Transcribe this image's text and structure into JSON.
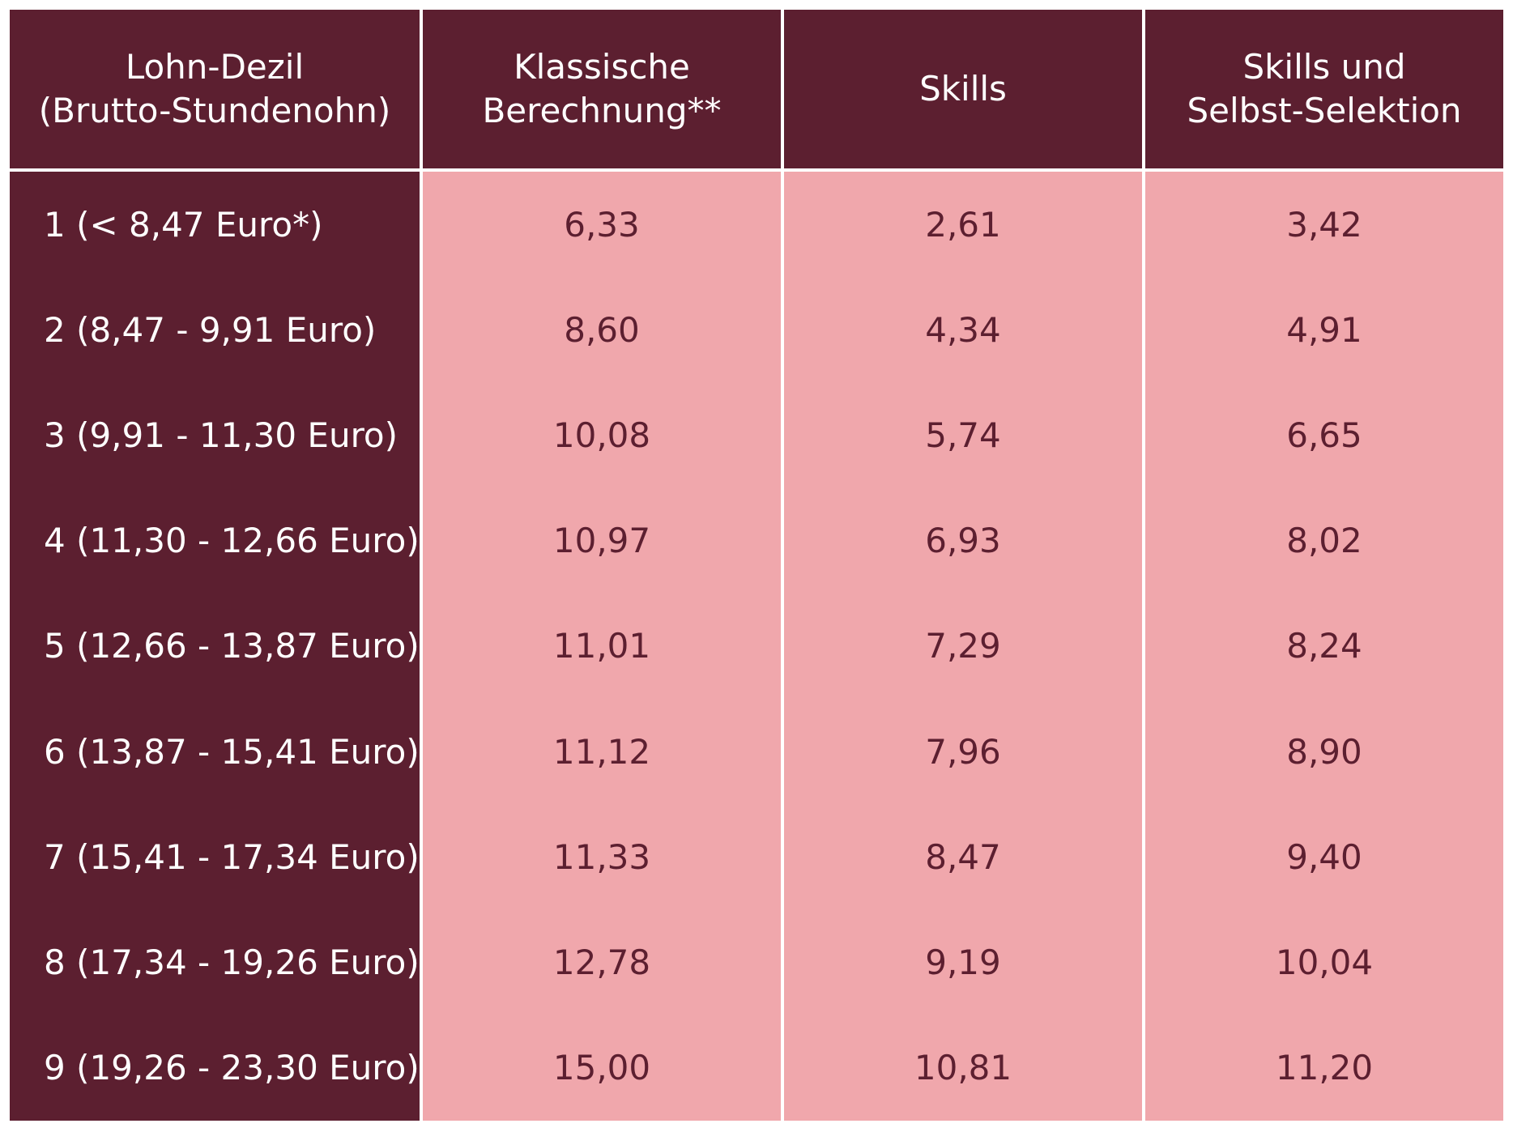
{
  "headers": [
    "Lohn-Dezil\n(Brutto-Stundenohn)",
    "Klassische\nBerechnung**",
    "Skills",
    "Skills und\nSelbst-Selektion"
  ],
  "rows": [
    {
      "label": "1 (< 8,47 Euro*)",
      "values": [
        "6,33",
        "2,61",
        "3,42"
      ]
    },
    {
      "label": "2 (8,47 - 9,91 Euro)",
      "values": [
        "8,60",
        "4,34",
        "4,91"
      ]
    },
    {
      "label": "3 (9,91 - 11,30 Euro)",
      "values": [
        "10,08",
        "5,74",
        "6,65"
      ]
    },
    {
      "label": "4 (11,30 - 12,66 Euro)",
      "values": [
        "10,97",
        "6,93",
        "8,02"
      ]
    },
    {
      "label": "5 (12,66 - 13,87 Euro)",
      "values": [
        "11,01",
        "7,29",
        "8,24"
      ]
    },
    {
      "label": "6 (13,87 - 15,41 Euro)",
      "values": [
        "11,12",
        "7,96",
        "8,90"
      ]
    },
    {
      "label": "7 (15,41 - 17,34 Euro)",
      "values": [
        "11,33",
        "8,47",
        "9,40"
      ]
    },
    {
      "label": "8 (17,34 - 19,26 Euro)",
      "values": [
        "12,78",
        "9,19",
        "10,04"
      ]
    },
    {
      "label": "9 (19,26 - 23,30 Euro)",
      "values": [
        "15,00",
        "10,81",
        "11,20"
      ]
    }
  ],
  "colors": {
    "dark": "#5c1f30",
    "light": "#f0a7ac",
    "separator": "#ffffff"
  }
}
